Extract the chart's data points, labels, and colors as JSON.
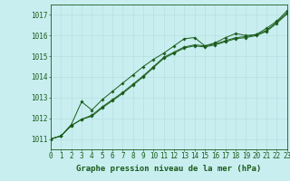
{
  "title": "Graphe pression niveau de la mer (hPa)",
  "background_color": "#c8eef0",
  "grid_color": "#b8dfe1",
  "line_color": "#1a5c1a",
  "x_values": [
    0,
    1,
    2,
    3,
    4,
    5,
    6,
    7,
    8,
    9,
    10,
    11,
    12,
    13,
    14,
    15,
    16,
    17,
    18,
    19,
    20,
    21,
    22,
    23
  ],
  "line1": [
    1011.0,
    1011.15,
    1011.7,
    1012.8,
    1012.4,
    1012.9,
    1013.3,
    1013.7,
    1014.1,
    1014.5,
    1014.85,
    1015.15,
    1015.5,
    1015.85,
    1015.9,
    1015.5,
    1015.65,
    1015.9,
    1016.1,
    1016.0,
    1016.05,
    1016.35,
    1016.7,
    1017.2
  ],
  "line2": [
    1011.0,
    1011.15,
    1011.65,
    1011.95,
    1012.15,
    1012.55,
    1012.9,
    1013.25,
    1013.65,
    1014.05,
    1014.5,
    1014.95,
    1015.2,
    1015.45,
    1015.55,
    1015.5,
    1015.6,
    1015.75,
    1015.9,
    1015.95,
    1016.05,
    1016.25,
    1016.65,
    1017.1
  ],
  "line3": [
    1011.0,
    1011.15,
    1011.65,
    1011.95,
    1012.1,
    1012.5,
    1012.85,
    1013.2,
    1013.6,
    1014.0,
    1014.45,
    1014.9,
    1015.15,
    1015.4,
    1015.5,
    1015.45,
    1015.55,
    1015.7,
    1015.85,
    1015.9,
    1016.0,
    1016.2,
    1016.6,
    1017.05
  ],
  "ylim": [
    1010.5,
    1017.5
  ],
  "yticks": [
    1011,
    1012,
    1013,
    1014,
    1015,
    1016,
    1017
  ],
  "xlim": [
    0,
    23
  ],
  "xticks": [
    0,
    1,
    2,
    3,
    4,
    5,
    6,
    7,
    8,
    9,
    10,
    11,
    12,
    13,
    14,
    15,
    16,
    17,
    18,
    19,
    20,
    21,
    22,
    23
  ],
  "title_fontsize": 6.5,
  "tick_fontsize": 5.5,
  "tick_color": "#1a5c1a",
  "marker_size": 1.8,
  "linewidth": 0.7
}
